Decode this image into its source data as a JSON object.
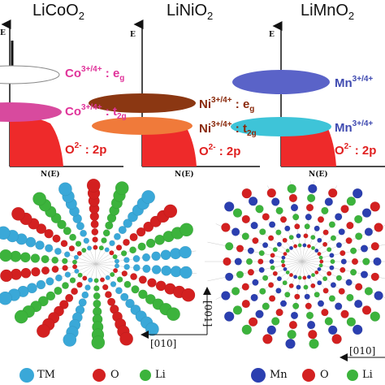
{
  "panels": [
    {
      "formula": "LiCoO",
      "formula_sub": "2",
      "e_axis": "E",
      "n_axis": "N(E)",
      "levels": [
        {
          "ion": "Co",
          "charge": "3+/4+",
          "orbital": "e",
          "orb_sub": "g",
          "color": "#e0339a"
        },
        {
          "ion": "Co",
          "charge": "3+/4+",
          "orbital": "t",
          "orb_sub": "2g",
          "color": "#e0339a"
        },
        {
          "ion": "O",
          "charge": "2-",
          "orbital": "2p",
          "color": "#e02020"
        }
      ]
    },
    {
      "formula": "LiNiO",
      "formula_sub": "2",
      "e_axis": "E",
      "n_axis": "N(E)",
      "levels": [
        {
          "ion": "Ni",
          "charge": "3+/4+",
          "orbital": "e",
          "orb_sub": "g",
          "color": "#8a2a0c"
        },
        {
          "ion": "Ni",
          "charge": "3+/4+",
          "orbital": "t",
          "orb_sub": "2g",
          "color": "#8a2a0c"
        },
        {
          "ion": "O",
          "charge": "2-",
          "orbital": "2p",
          "color": "#e02020"
        }
      ]
    },
    {
      "formula": "LiMnO",
      "formula_sub": "2",
      "e_axis": "E",
      "n_axis": "N(E)",
      "levels": [
        {
          "ion": "Mn",
          "charge": "3+/4+",
          "color": "#3f4ab0"
        },
        {
          "ion": "Mn",
          "charge": "3+/4+",
          "color": "#3f4ab0"
        },
        {
          "ion": "O",
          "charge": "2-",
          "orbital": "2p",
          "color": "#e02020"
        }
      ]
    }
  ],
  "legend_left": [
    {
      "label": "TM",
      "color": "#3aa8d8"
    },
    {
      "label": "O",
      "color": "#d32020"
    },
    {
      "label": "Li",
      "color": "#3cb33c"
    }
  ],
  "legend_right": [
    {
      "label": "Mn",
      "color": "#2b3fb0"
    },
    {
      "label": "O",
      "color": "#d32020"
    },
    {
      "label": "Li",
      "color": "#3cb33c"
    }
  ],
  "directions": {
    "left_vertical": "[001]",
    "left_horizontal": "[010]",
    "right_horizontal": "[010]"
  },
  "colors": {
    "co_eg": "#ffffff",
    "co_t2g": "#d84a9e",
    "o2p": "#ee2a2a",
    "ni_eg": "#8b3712",
    "ni_t2g": "#f07a3a",
    "mn_eg": "#5a63c8",
    "mn_t2g": "#3ec4d8"
  }
}
